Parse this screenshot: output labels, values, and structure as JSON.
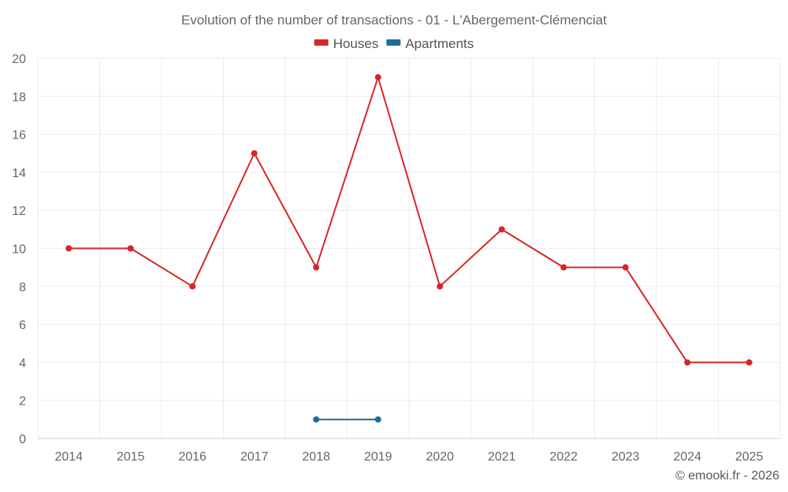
{
  "chart_data": {
    "type": "line",
    "title": "Evolution of the number of transactions - 01 - L'Abergement-Clémenciat",
    "x": [
      "2014",
      "2015",
      "2016",
      "2017",
      "2018",
      "2019",
      "2020",
      "2021",
      "2022",
      "2023",
      "2024",
      "2025"
    ],
    "ylim": [
      0,
      20
    ],
    "yticks": [
      0,
      2,
      4,
      6,
      8,
      10,
      12,
      14,
      16,
      18,
      20
    ],
    "grid": true,
    "legend": "top-center",
    "series": [
      {
        "name": "Houses",
        "color": "#d62728",
        "values": [
          10,
          10,
          8,
          15,
          9,
          19,
          8,
          11,
          9,
          9,
          4,
          4
        ]
      },
      {
        "name": "Apartments",
        "color": "#1f6c9c",
        "values": [
          null,
          null,
          null,
          null,
          1,
          1,
          null,
          null,
          null,
          null,
          null,
          null
        ]
      }
    ],
    "credit": "© emooki.fr - 2026"
  }
}
